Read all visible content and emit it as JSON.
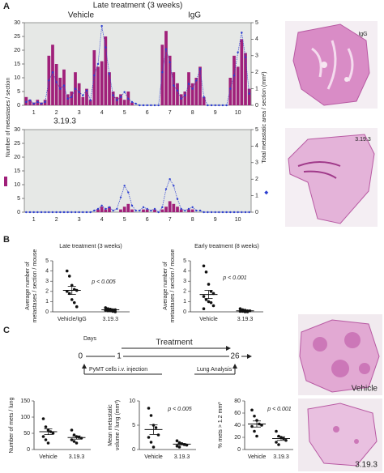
{
  "panel_labels": [
    "A",
    "B",
    "C"
  ],
  "chart_data": [
    {
      "type": "bar_line",
      "title": "Late treatment (3 weeks)",
      "annotations": [
        "Vehicle",
        "IgG"
      ],
      "ylabel": "Number of metastases / section",
      "y2label": "Total metastatic area / section (mm²)",
      "categories": [
        null,
        null,
        "1",
        null,
        null,
        null,
        null,
        null,
        "2",
        null,
        null,
        null,
        null,
        null,
        "3",
        null,
        null,
        null,
        null,
        null,
        "4",
        null,
        null,
        null,
        null,
        null,
        "5",
        null,
        null,
        null,
        null,
        null,
        "6",
        null,
        null,
        null,
        null,
        null,
        "7",
        null,
        null,
        null,
        null,
        null,
        "8",
        null,
        null,
        null,
        null,
        null,
        "9",
        null,
        null,
        null,
        null,
        null,
        "10",
        null,
        null,
        null
      ],
      "series": [
        {
          "color": "#a0207a",
          "values": [
            3,
            2,
            1,
            2,
            1,
            2,
            18,
            22,
            15,
            10,
            13,
            4,
            5,
            12,
            8,
            3,
            6,
            2,
            20,
            14,
            16,
            25,
            12,
            5,
            3,
            4,
            2,
            5,
            1,
            0,
            0,
            0,
            0,
            0,
            0,
            0,
            22,
            27,
            18,
            12,
            8,
            4,
            5,
            12,
            8,
            10,
            14,
            3,
            0,
            0,
            0,
            0,
            0,
            0,
            10,
            18,
            14,
            24,
            19,
            6
          ]
        },
        {
          "color": "#2c3ed0",
          "axis": "y2",
          "values": [
            0.2,
            0.3,
            0.1,
            0.2,
            0.1,
            0.2,
            1.5,
            2.0,
            1.4,
            1.0,
            1.2,
            0.4,
            0.5,
            1.0,
            0.8,
            0.6,
            0.9,
            0.3,
            1.8,
            2.5,
            4.8,
            3.5,
            1.9,
            0.6,
            0.3,
            0.5,
            0.8,
            0.4,
            0.2,
            0.1,
            0,
            0,
            0,
            0,
            0,
            0,
            2.0,
            3.4,
            2.6,
            1.2,
            0.9,
            0.4,
            0.6,
            1.3,
            1.0,
            1.5,
            2.2,
            0.5,
            0,
            0,
            0,
            0,
            0,
            0,
            1.0,
            1.8,
            3.2,
            4.4,
            2.9,
            0.7
          ]
        }
      ],
      "ylim": [
        0,
        30
      ],
      "yticks": [
        0,
        5,
        10,
        15,
        20,
        25,
        30
      ],
      "y2lim": [
        0,
        5
      ],
      "y2ticks": [
        0,
        1,
        2,
        3,
        4,
        5
      ],
      "background": "#e6e8e6"
    },
    {
      "type": "bar_line",
      "title": "3.19.3",
      "categories": [
        null,
        null,
        "1",
        null,
        null,
        null,
        null,
        null,
        "2",
        null,
        null,
        null,
        null,
        null,
        "3",
        null,
        null,
        null,
        null,
        null,
        "4",
        null,
        null,
        null,
        null,
        null,
        "5",
        null,
        null,
        null,
        null,
        null,
        "6",
        null,
        null,
        null,
        null,
        null,
        "7",
        null,
        null,
        null,
        null,
        null,
        "8",
        null,
        null,
        null,
        null,
        null,
        "9",
        null,
        null,
        null,
        null,
        null,
        "10",
        null,
        null,
        null
      ],
      "series": [
        {
          "color": "#a0207a",
          "values": [
            0,
            0,
            0,
            0,
            0,
            0,
            0,
            0,
            0,
            0,
            0,
            0,
            0,
            0,
            0,
            0,
            0,
            0,
            0,
            1,
            2,
            1,
            2,
            0,
            0,
            1,
            2,
            3,
            1,
            0,
            0,
            1,
            1,
            0,
            1,
            0,
            1,
            2,
            4,
            3,
            2,
            1,
            0,
            1,
            1,
            0,
            0,
            0,
            0,
            0,
            0,
            0,
            0,
            0,
            0,
            0,
            0,
            0,
            0,
            0
          ]
        },
        {
          "color": "#2c3ed0",
          "axis": "y2",
          "values": [
            0,
            0,
            0,
            0,
            0,
            0,
            0,
            0,
            0,
            0,
            0,
            0,
            0,
            0,
            0,
            0,
            0,
            0,
            0.1,
            0.2,
            0.4,
            0.2,
            0.3,
            0.1,
            0.2,
            0.9,
            1.6,
            1.2,
            0.4,
            0.1,
            0.1,
            0.3,
            0.2,
            0.1,
            0.2,
            0,
            0.3,
            1.4,
            2.0,
            1.6,
            0.8,
            0.2,
            0.1,
            0.2,
            0.3,
            0.1,
            0.1,
            0,
            0,
            0,
            0,
            0,
            0,
            0,
            0,
            0,
            0,
            0,
            0,
            0
          ]
        }
      ],
      "ylim": [
        0,
        30
      ],
      "yticks": [
        0,
        5,
        10,
        15,
        20,
        25,
        30
      ],
      "y2lim": [
        0,
        5
      ],
      "y2ticks": [
        0,
        1,
        2,
        3,
        4,
        5
      ],
      "background": "#e6e8e6"
    },
    {
      "type": "strip",
      "title": "Late treatment (3 weeks)",
      "ylabel": [
        "Average number of",
        "metastases / section / mouse"
      ],
      "categories": [
        "Vehicle/IgG",
        "3.19.3"
      ],
      "groups": [
        [
          4.0,
          3.5,
          2.6,
          2.2,
          2.1,
          2.0,
          1.8,
          1.2,
          0.9,
          0.5
        ],
        [
          0.4,
          0.3,
          0.25,
          0.2,
          0.2,
          0.15,
          0.1,
          0.1,
          0.05,
          0
        ]
      ],
      "means": [
        2.1,
        0.2
      ],
      "sems": [
        0.4,
        0.04
      ],
      "annotation": "p < 0.005",
      "ylim": [
        0,
        5
      ],
      "yticks": [
        0,
        1,
        2,
        3,
        4,
        5
      ],
      "color": "#111111"
    },
    {
      "type": "strip",
      "title": "Early treatment (8 weeks)",
      "ylabel": [
        "Average number of",
        "metastases / section / mouse"
      ],
      "categories": [
        "Vehicle",
        "3.19.3"
      ],
      "groups": [
        [
          4.5,
          3.9,
          2.7,
          2.0,
          1.8,
          1.5,
          1.2,
          1.0,
          0.9,
          0.6,
          0.3
        ],
        [
          0.3,
          0.2,
          0.15,
          0.1,
          0.1,
          0.05,
          0.05,
          0,
          0
        ]
      ],
      "means": [
        1.7,
        0.1
      ],
      "sems": [
        0.4,
        0.03
      ],
      "annotation": "p < 0.001",
      "ylim": [
        0,
        5
      ],
      "yticks": [
        0,
        1,
        2,
        3,
        4,
        5
      ],
      "color": "#111111"
    },
    {
      "type": "strip",
      "ylabel": [
        "Number of mets / lung"
      ],
      "categories": [
        "Vehicle",
        "3.19.3"
      ],
      "groups": [
        [
          95,
          70,
          60,
          55,
          50,
          40,
          30,
          20
        ],
        [
          60,
          45,
          40,
          38,
          35,
          30,
          25,
          20
        ]
      ],
      "means": [
        55,
        37
      ],
      "sems": [
        9,
        5
      ],
      "ylim": [
        0,
        150
      ],
      "yticks": [
        0,
        50,
        100,
        150
      ],
      "color": "#111111"
    },
    {
      "type": "strip",
      "ylabel": [
        "Mean metastatic",
        "volume / lung (mm³)"
      ],
      "categories": [
        "Vehicle",
        "3.19.3"
      ],
      "groups": [
        [
          8.5,
          7,
          5,
          4.5,
          3,
          2.5,
          1.5,
          0.5
        ],
        [
          1.8,
          1.4,
          1.2,
          1.0,
          0.9,
          0.7,
          0.5
        ]
      ],
      "means": [
        4.1,
        1.1
      ],
      "sems": [
        1.0,
        0.15
      ],
      "annotation": "p < 0.005",
      "ylim": [
        0,
        10
      ],
      "yticks": [
        0,
        5,
        10
      ],
      "color": "#111111"
    },
    {
      "type": "strip",
      "ylabel": [
        "% mets > 1.2 mm³"
      ],
      "categories": [
        "Vehicle",
        "3.19.3"
      ],
      "groups": [
        [
          65,
          55,
          48,
          42,
          40,
          38,
          30,
          22
        ],
        [
          30,
          22,
          20,
          18,
          15,
          12,
          8
        ]
      ],
      "means": [
        42,
        18
      ],
      "sems": [
        5,
        3
      ],
      "annotation": "p < 0.001",
      "ylim": [
        0,
        80
      ],
      "yticks": [
        0,
        20,
        40,
        60,
        80
      ],
      "color": "#111111"
    }
  ],
  "timeline": {
    "label": "Days",
    "days": [
      0,
      1,
      26
    ],
    "treatment": "Treatment",
    "events": [
      "PyMT cells i.v. injection",
      "Lung Analysis"
    ]
  },
  "image_labels": [
    "IgG",
    "3.19.3",
    "Vehicle",
    "3.19.3"
  ]
}
